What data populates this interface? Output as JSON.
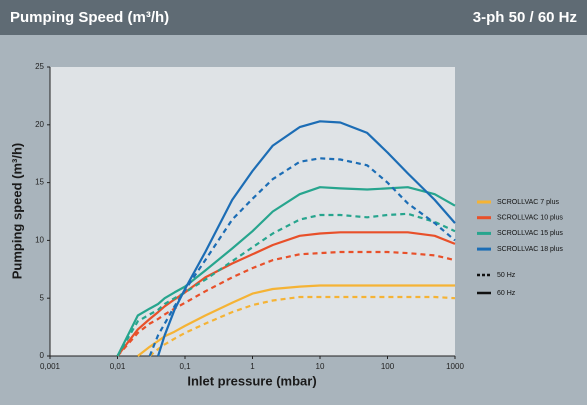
{
  "header": {
    "title": "Pumping Speed (m³/h)",
    "subtitle": "3-ph 50 / 60 Hz"
  },
  "chart_data": {
    "type": "line",
    "x_label": "Inlet pressure (mbar)",
    "y_label": "Pumping speed (m³/h)",
    "log_x": true,
    "grid": false,
    "xlim": [
      0.001,
      1000
    ],
    "xticks": [
      {
        "value": 0.001,
        "label": "0,001"
      },
      {
        "value": 0.01,
        "label": "0,01"
      },
      {
        "value": 0.1,
        "label": "0,1"
      },
      1,
      10,
      100,
      1000
    ],
    "ylim": [
      0,
      25
    ],
    "yticks": [
      0,
      5,
      10,
      15,
      20,
      25
    ],
    "x": [
      0.01,
      0.02,
      0.03,
      0.04,
      0.05,
      0.07,
      0.1,
      0.2,
      0.5,
      1,
      2,
      5,
      10,
      20,
      50,
      100,
      200,
      500,
      1000
    ],
    "line_styles": [
      {
        "name": "50 Hz",
        "style": "dashed"
      },
      {
        "name": "60 Hz",
        "style": "solid"
      }
    ],
    "series": [
      {
        "name": "SCROLLVAC 7 plus",
        "color": "#f5b335",
        "curves": [
          {
            "values": [
              null,
              null,
              0,
              0.6,
              1.0,
              1.5,
              2.0,
              2.8,
              3.8,
              4.4,
              4.8,
              5.1,
              5.1,
              5.1,
              5.1,
              5.1,
              5.1,
              5.1,
              5.0
            ]
          },
          {
            "values": [
              null,
              0,
              0.8,
              1.3,
              1.7,
              2.1,
              2.6,
              3.5,
              4.6,
              5.4,
              5.8,
              6.0,
              6.1,
              6.1,
              6.1,
              6.1,
              6.1,
              6.1,
              6.1
            ]
          }
        ]
      },
      {
        "name": "SCROLLVAC 10 plus",
        "color": "#e8502a",
        "curves": [
          {
            "values": [
              0,
              2.0,
              2.8,
              3.2,
              3.6,
              4.1,
              4.6,
              5.6,
              6.8,
              7.6,
              8.3,
              8.8,
              8.9,
              9.0,
              9.0,
              9.0,
              8.9,
              8.7,
              8.3
            ]
          },
          {
            "values": [
              0,
              2.3,
              3.2,
              3.8,
              4.3,
              4.9,
              5.5,
              6.8,
              8.0,
              8.8,
              9.6,
              10.4,
              10.6,
              10.7,
              10.7,
              10.7,
              10.7,
              10.4,
              9.7
            ]
          }
        ]
      },
      {
        "name": "SCROLLVAC 15 plus",
        "color": "#27a58e",
        "curves": [
          {
            "values": [
              0,
              3.0,
              3.6,
              4.0,
              4.5,
              5.0,
              5.5,
              6.6,
              8.2,
              9.4,
              10.6,
              11.8,
              12.2,
              12.2,
              12.0,
              12.2,
              12.3,
              11.6,
              10.8
            ]
          },
          {
            "values": [
              0,
              3.5,
              4.1,
              4.5,
              5.0,
              5.5,
              6.0,
              7.4,
              9.3,
              10.8,
              12.5,
              14.0,
              14.6,
              14.5,
              14.4,
              14.5,
              14.6,
              14.0,
              13.0
            ]
          }
        ]
      },
      {
        "name": "SCROLLVAC 18 plus",
        "color": "#1c6db5",
        "curves": [
          {
            "values": [
              null,
              null,
              0,
              1.8,
              2.8,
              4.3,
              5.7,
              8.3,
              11.8,
              13.6,
              15.3,
              16.8,
              17.1,
              17.0,
              16.5,
              15.0,
              13.2,
              11.5,
              10.0
            ]
          },
          {
            "values": [
              null,
              null,
              null,
              0,
              1.8,
              4.0,
              5.8,
              9.0,
              13.5,
              16.0,
              18.2,
              19.8,
              20.3,
              20.2,
              19.3,
              17.6,
              15.8,
              13.5,
              11.5
            ]
          }
        ]
      }
    ]
  }
}
